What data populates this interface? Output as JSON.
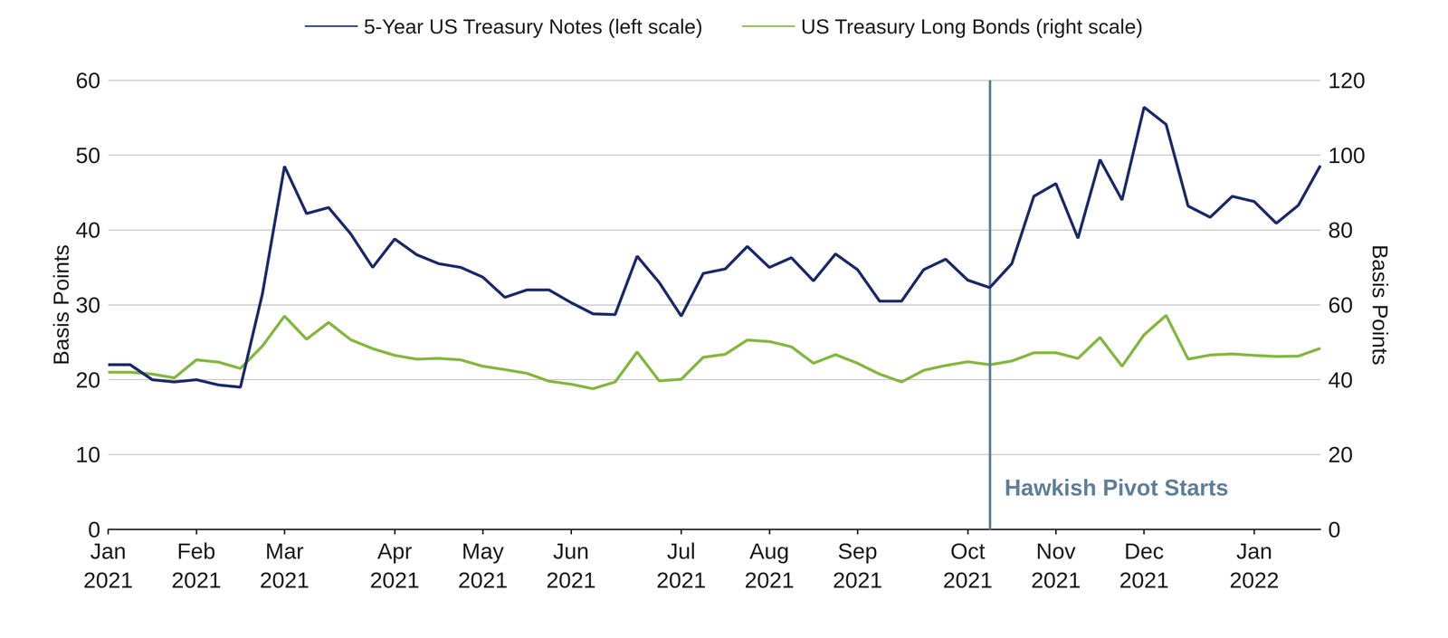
{
  "chart_data": {
    "type": "line",
    "categories": [
      "Jan\n2021",
      null,
      null,
      null,
      "Feb\n2021",
      null,
      null,
      null,
      "Mar\n2021",
      null,
      null,
      null,
      null,
      "Apr\n2021",
      null,
      null,
      null,
      "May\n2021",
      null,
      null,
      null,
      "Jun\n2021",
      null,
      null,
      null,
      null,
      "Jul\n2021",
      null,
      null,
      null,
      "Aug\n2021",
      null,
      null,
      null,
      "Sep\n2021",
      null,
      null,
      null,
      null,
      "Oct\n2021",
      null,
      null,
      null,
      "Nov\n2021",
      null,
      null,
      null,
      "Dec\n2021",
      null,
      null,
      null,
      null,
      "Jan\n2022",
      null,
      null,
      null
    ],
    "series": [
      {
        "name": "5-Year US Treasury Notes (left scale)",
        "color": "#1c2a6b",
        "axis": "y",
        "values": [
          22,
          22,
          20,
          19.7,
          20,
          19.3,
          19,
          31.5,
          48.5,
          42.2,
          43,
          39.5,
          35,
          38.8,
          36.7,
          35.5,
          35,
          33.7,
          31,
          32,
          32,
          30.3,
          28.8,
          28.7,
          36.5,
          33,
          28.5,
          34.2,
          34.8,
          37.8,
          35,
          36.3,
          33.2,
          36.8,
          34.7,
          30.5,
          30.5,
          34.7,
          36.1,
          33.3,
          32.3,
          35.5,
          44.5,
          46.2,
          38.9,
          49.4,
          44,
          56.4,
          54.1,
          43.2,
          41.7,
          44.5,
          43.8,
          40.9,
          43.3,
          48.6
        ]
      },
      {
        "name": "US Treasury Long Bonds (right scale)",
        "color": "#84b740",
        "axis": "y2",
        "values": [
          42,
          42,
          41.5,
          40.5,
          45.3,
          44.7,
          43,
          49,
          57,
          50.8,
          55.3,
          50.7,
          48.3,
          46.5,
          45.5,
          45.7,
          45.3,
          43.6,
          42.7,
          41.7,
          39.6,
          38.8,
          37.6,
          39.4,
          47.4,
          39.7,
          40.1,
          46,
          46.8,
          50.6,
          50.2,
          48.8,
          44.4,
          46.7,
          44.4,
          41.5,
          39.4,
          42.5,
          43.8,
          44.8,
          44,
          45,
          47.2,
          47.2,
          45.7,
          51.3,
          43.6,
          52,
          57.2,
          45.5,
          46.6,
          46.9,
          46.5,
          46.2,
          46.3,
          48.4
        ]
      }
    ],
    "y_label": "Basis Points",
    "y2_label": "Basis Points",
    "ylim": [
      0,
      60
    ],
    "yticks": [
      0,
      10,
      20,
      30,
      40,
      50,
      60
    ],
    "y2lim": [
      0,
      120
    ],
    "y2ticks": [
      0,
      20,
      40,
      60,
      80,
      100,
      120
    ],
    "annotations": [
      {
        "text": "Hawkish Pivot Starts",
        "x": 40
      }
    ],
    "grid": true,
    "legend": "top"
  }
}
